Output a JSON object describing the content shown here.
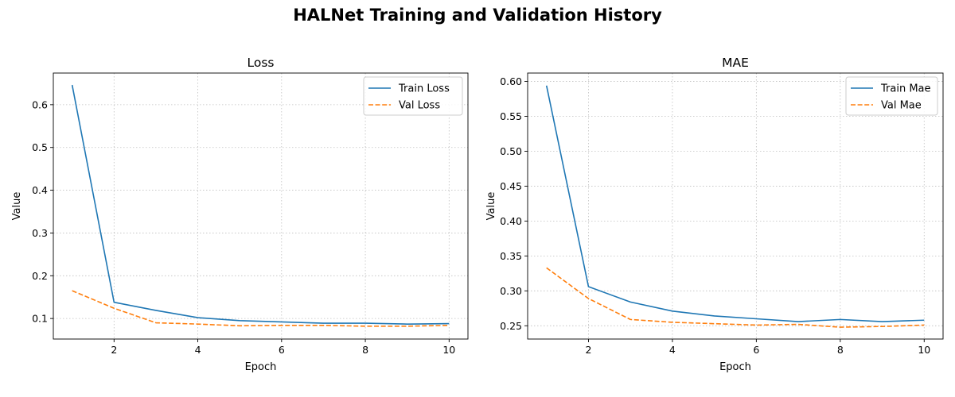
{
  "figure": {
    "title": "HALNet Training and Validation History"
  },
  "chart_data": [
    {
      "type": "line",
      "title": "Loss",
      "xlabel": "Epoch",
      "ylabel": "Value",
      "x": [
        1,
        2,
        3,
        4,
        5,
        6,
        7,
        8,
        9,
        10
      ],
      "xlim": [
        0.55,
        10.45
      ],
      "ylim": [
        0.052,
        0.674
      ],
      "xticks": [
        2,
        4,
        6,
        8,
        10
      ],
      "yticks": [
        0.1,
        0.2,
        0.3,
        0.4,
        0.5,
        0.6
      ],
      "grid": true,
      "legend_position": "top-right",
      "series": [
        {
          "name": "Train Loss",
          "color": "#1f77b4",
          "dash": "solid",
          "values": [
            0.646,
            0.138,
            0.119,
            0.102,
            0.095,
            0.092,
            0.089,
            0.089,
            0.087,
            0.088
          ]
        },
        {
          "name": "Val Loss",
          "color": "#ff7f0e",
          "dash": "dashed",
          "values": [
            0.165,
            0.124,
            0.09,
            0.087,
            0.083,
            0.084,
            0.084,
            0.082,
            0.082,
            0.084
          ]
        }
      ]
    },
    {
      "type": "line",
      "title": "MAE",
      "xlabel": "Epoch",
      "ylabel": "Value",
      "x": [
        1,
        2,
        3,
        4,
        5,
        6,
        7,
        8,
        9,
        10
      ],
      "xlim": [
        0.55,
        10.45
      ],
      "ylim": [
        0.231,
        0.612
      ],
      "xticks": [
        2,
        4,
        6,
        8,
        10
      ],
      "yticks": [
        0.25,
        0.3,
        0.35,
        0.4,
        0.45,
        0.5,
        0.55,
        0.6
      ],
      "grid": true,
      "legend_position": "top-right",
      "series": [
        {
          "name": "Train Mae",
          "color": "#1f77b4",
          "dash": "solid",
          "values": [
            0.594,
            0.306,
            0.284,
            0.271,
            0.264,
            0.26,
            0.256,
            0.259,
            0.256,
            0.258
          ]
        },
        {
          "name": "Val Mae",
          "color": "#ff7f0e",
          "dash": "dashed",
          "values": [
            0.333,
            0.289,
            0.259,
            0.255,
            0.253,
            0.251,
            0.252,
            0.248,
            0.249,
            0.251
          ]
        }
      ]
    }
  ]
}
